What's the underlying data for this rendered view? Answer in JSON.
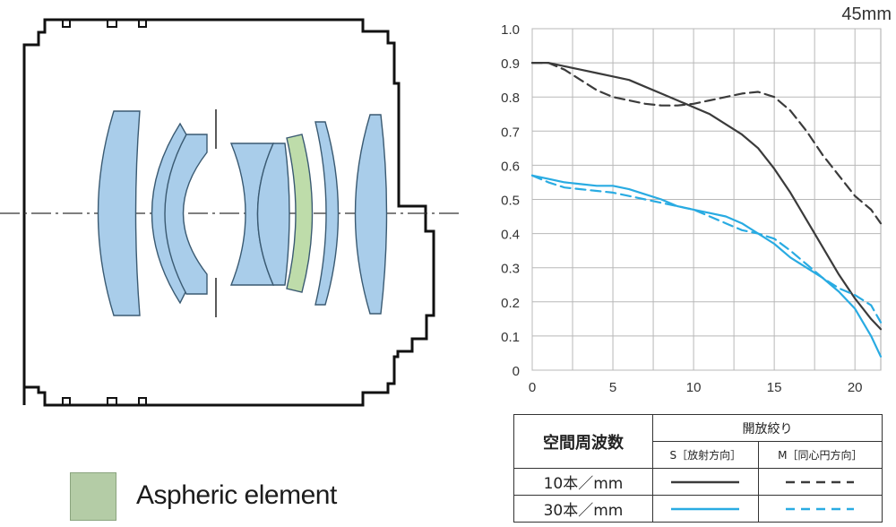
{
  "lens": {
    "legend_label": "Aspheric element",
    "element_color": "#a9cdea",
    "aspheric_color": "#bedcaa",
    "outline_color": "#111111"
  },
  "chart_data": {
    "type": "line",
    "title": "45mm",
    "xlabel": "",
    "ylabel": "",
    "xlim": [
      0,
      21.6
    ],
    "ylim": [
      0,
      1.0
    ],
    "xticks": [
      0,
      5,
      10,
      15,
      20
    ],
    "yticks": [
      0,
      0.1,
      0.2,
      0.3,
      0.4,
      0.5,
      0.6,
      0.7,
      0.8,
      0.9,
      1.0
    ],
    "ytick_labels": [
      "0",
      "0.1",
      "0.2",
      "0.3",
      "0.4",
      "0.5",
      "0.6",
      "0.7",
      "0.8",
      "0.9",
      "1.0"
    ],
    "grid": true,
    "series": [
      {
        "color": "#3b3b3b",
        "dash": "solid",
        "x": [
          0,
          1,
          2,
          3,
          4,
          5,
          6,
          7,
          8,
          9,
          10,
          11,
          12,
          13,
          14,
          15,
          16,
          17,
          18,
          19,
          20,
          21,
          21.6
        ],
        "y": [
          0.9,
          0.9,
          0.89,
          0.88,
          0.87,
          0.86,
          0.85,
          0.83,
          0.81,
          0.79,
          0.77,
          0.75,
          0.72,
          0.69,
          0.65,
          0.59,
          0.52,
          0.44,
          0.36,
          0.28,
          0.21,
          0.15,
          0.12
        ]
      },
      {
        "color": "#3b3b3b",
        "dash": "dashed",
        "x": [
          0,
          1,
          2,
          3,
          4,
          5,
          6,
          7,
          8,
          9,
          10,
          11,
          12,
          13,
          14,
          15,
          16,
          17,
          18,
          19,
          20,
          21,
          21.6
        ],
        "y": [
          0.9,
          0.9,
          0.88,
          0.85,
          0.82,
          0.8,
          0.79,
          0.78,
          0.775,
          0.775,
          0.78,
          0.79,
          0.8,
          0.81,
          0.815,
          0.8,
          0.76,
          0.7,
          0.63,
          0.57,
          0.51,
          0.47,
          0.43
        ]
      },
      {
        "color": "#29abe2",
        "dash": "solid",
        "x": [
          0,
          1,
          2,
          3,
          4,
          5,
          6,
          7,
          8,
          9,
          10,
          11,
          12,
          13,
          14,
          15,
          16,
          17,
          18,
          19,
          20,
          21,
          21.6
        ],
        "y": [
          0.57,
          0.56,
          0.55,
          0.545,
          0.54,
          0.54,
          0.53,
          0.515,
          0.5,
          0.48,
          0.47,
          0.46,
          0.45,
          0.43,
          0.4,
          0.37,
          0.33,
          0.3,
          0.27,
          0.23,
          0.18,
          0.1,
          0.04
        ]
      },
      {
        "color": "#29abe2",
        "dash": "dashed",
        "x": [
          0,
          1,
          2,
          3,
          4,
          5,
          6,
          7,
          8,
          9,
          10,
          11,
          12,
          13,
          14,
          15,
          16,
          17,
          18,
          19,
          20,
          21,
          21.6
        ],
        "y": [
          0.57,
          0.55,
          0.535,
          0.53,
          0.525,
          0.52,
          0.51,
          0.5,
          0.49,
          0.48,
          0.47,
          0.45,
          0.43,
          0.41,
          0.4,
          0.385,
          0.35,
          0.31,
          0.27,
          0.24,
          0.22,
          0.19,
          0.14
        ]
      }
    ]
  },
  "table": {
    "header_left": "空間周波数",
    "header_top": "開放絞り",
    "col_s": "S［放射方向］",
    "col_m": "M［同心円方向］",
    "rows": [
      {
        "label": "10本／mm",
        "color": "#3b3b3b"
      },
      {
        "label": "30本／mm",
        "color": "#29abe2"
      }
    ]
  }
}
